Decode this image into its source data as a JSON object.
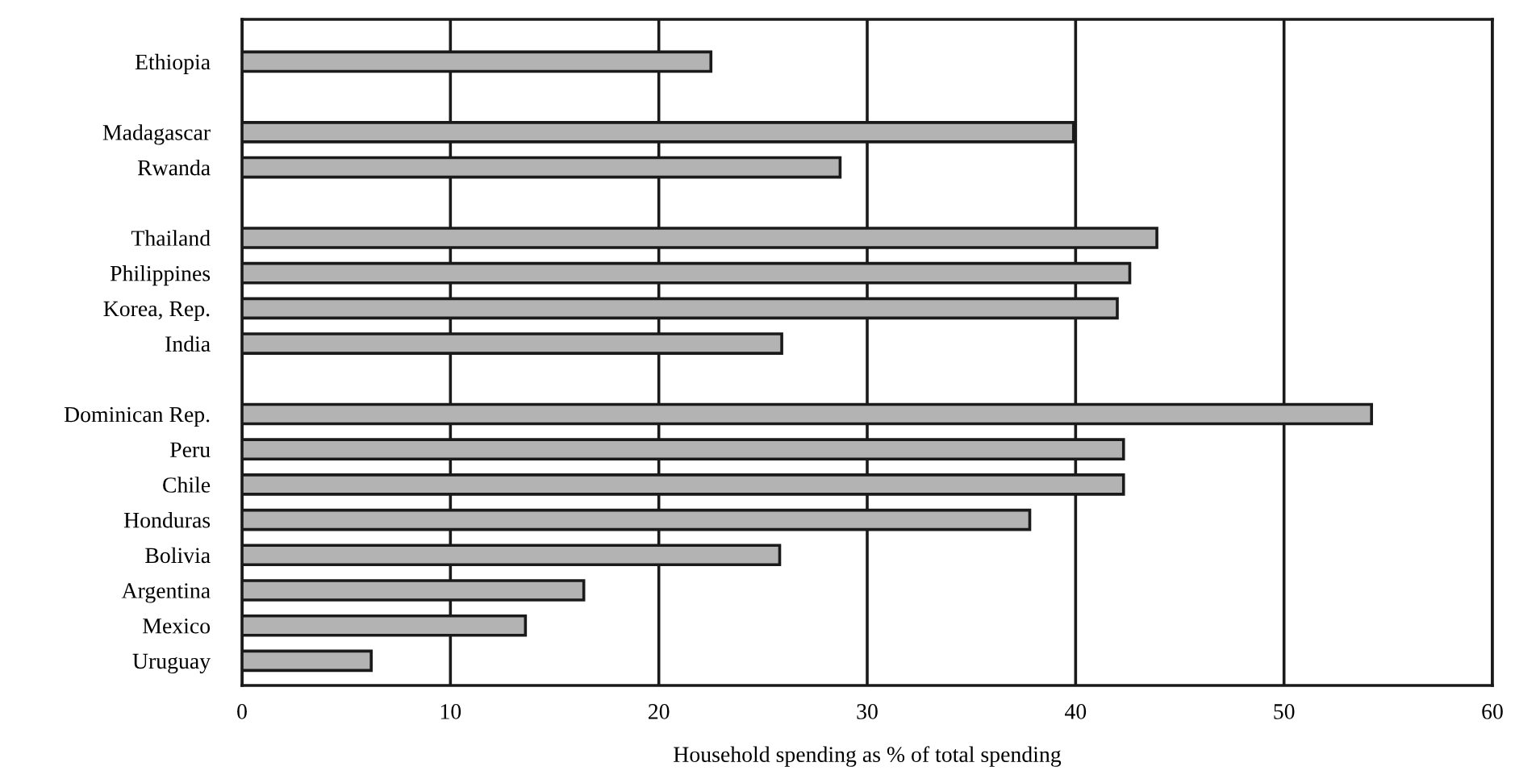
{
  "chart_data": {
    "type": "bar",
    "orientation": "horizontal",
    "xlabel": "Household spending as % of total spending",
    "categories": [
      "Ethiopia",
      null,
      "Madagascar",
      "Rwanda",
      null,
      "Thailand",
      "Philippines",
      "Korea, Rep.",
      "India",
      null,
      "Dominican Rep.",
      "Peru",
      "Chile",
      "Honduras",
      "Bolivia",
      "Argentina",
      "Mexico",
      "Uruguay"
    ],
    "values": [
      22.5,
      null,
      39.9,
      28.7,
      null,
      43.9,
      42.6,
      42.0,
      25.9,
      null,
      54.2,
      42.3,
      42.3,
      37.8,
      25.8,
      16.4,
      13.6,
      6.2
    ],
    "color": "#b3b3b3",
    "xlim": [
      0,
      60
    ],
    "xticks": [
      0,
      10,
      20,
      30,
      40,
      50,
      60
    ],
    "grid": "x",
    "legend": false
  }
}
